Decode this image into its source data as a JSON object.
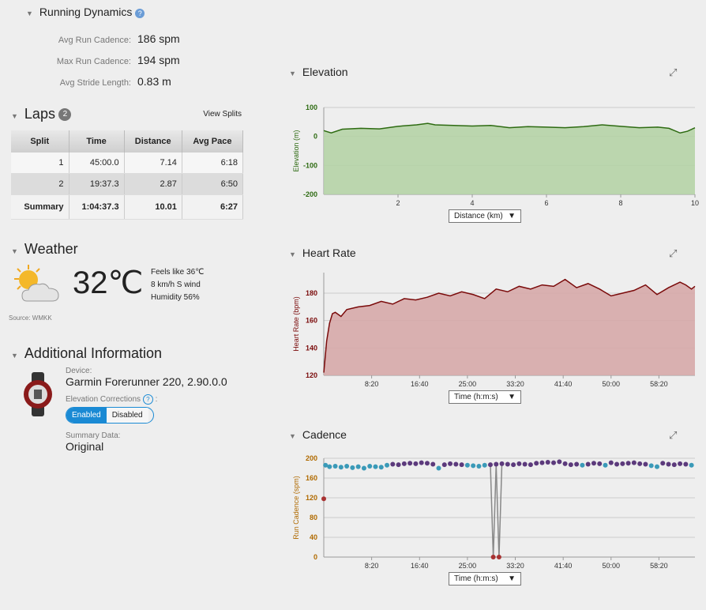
{
  "running_dynamics": {
    "title": "Running Dynamics",
    "rows": [
      {
        "label": "Avg Run Cadence:",
        "value": "186 spm"
      },
      {
        "label": "Max Run Cadence:",
        "value": "194 spm"
      },
      {
        "label": "Avg Stride Length:",
        "value": "0.83 m"
      }
    ]
  },
  "laps": {
    "title": "Laps",
    "count": "2",
    "view_splits": "View Splits",
    "headers": [
      "Split",
      "Time",
      "Distance",
      "Avg Pace"
    ],
    "rows": [
      [
        "1",
        "45:00.0",
        "7.14",
        "6:18"
      ],
      [
        "2",
        "19:37.3",
        "2.87",
        "6:50"
      ]
    ],
    "summary": [
      "Summary",
      "1:04:37.3",
      "10.01",
      "6:27"
    ]
  },
  "weather": {
    "title": "Weather",
    "temp": "32℃",
    "feels": "Feels like 36℃",
    "wind": "8 km/h S wind",
    "humidity": "Humidity 56%",
    "source": "Source: WMKK",
    "icon": "partly-cloudy-icon"
  },
  "additional": {
    "title": "Additional Information",
    "device_label": "Device:",
    "device": "Garmin Forerunner 220, 2.90.0.0",
    "elev_label": "Elevation Corrections",
    "enabled": "Enabled",
    "disabled": "Disabled",
    "summary_label": "Summary Data:",
    "summary": "Original"
  },
  "colors": {
    "elevation": "#2e6b12",
    "elevation_fill": "#b5d3a6",
    "hr": "#7a0a0a",
    "hr_fill": "#d6a8a8",
    "cad_axis": "#b06a00",
    "cad_high": "#5c3a7c",
    "cad_mid": "#3a9ab8",
    "cad_low": "#a83232",
    "toggle": "#1a8ad4"
  },
  "chart_data": [
    {
      "type": "area",
      "title": "Elevation",
      "ylabel": "Elevation (m)",
      "xaxis_select": "Distance (km)",
      "xlim": [
        0,
        10
      ],
      "ylim": [
        -200,
        100
      ],
      "xticks": [
        "2",
        "4",
        "6",
        "8",
        "10"
      ],
      "yticks": [
        "100",
        "0",
        "-100",
        "-200"
      ],
      "grid": true,
      "x": [
        0,
        0.2,
        0.5,
        1,
        1.5,
        2,
        2.5,
        2.8,
        3,
        3.5,
        4,
        4.5,
        5,
        5.5,
        6,
        6.5,
        7,
        7.5,
        8,
        8.5,
        9,
        9.3,
        9.6,
        9.8,
        10
      ],
      "y": [
        20,
        12,
        25,
        28,
        26,
        35,
        40,
        45,
        40,
        38,
        36,
        38,
        30,
        34,
        32,
        30,
        34,
        40,
        35,
        30,
        32,
        28,
        12,
        18,
        30
      ]
    },
    {
      "type": "area",
      "title": "Heart Rate",
      "ylabel": "Heart Rate (bpm)",
      "xaxis_select": "Time (h:m:s)",
      "xlim": [
        0,
        64.6
      ],
      "ylim": [
        120,
        195
      ],
      "xticks": [
        "8:20",
        "16:40",
        "25:00",
        "33:20",
        "41:40",
        "50:00",
        "58:20"
      ],
      "xtick_values": [
        8.33,
        16.67,
        25,
        33.33,
        41.67,
        50,
        58.33
      ],
      "yticks": [
        "180",
        "160",
        "140",
        "120"
      ],
      "grid": true,
      "x": [
        0,
        0.5,
        1,
        1.5,
        2,
        3,
        4,
        6,
        8,
        10,
        12,
        14,
        16,
        18,
        20,
        22,
        24,
        26,
        28,
        30,
        32,
        34,
        36,
        38,
        40,
        42,
        44,
        46,
        48,
        50,
        52,
        54,
        56,
        58,
        60,
        62,
        63,
        64,
        64.6
      ],
      "y": [
        122,
        145,
        158,
        165,
        166,
        163,
        168,
        170,
        171,
        174,
        172,
        176,
        175,
        177,
        180,
        178,
        181,
        179,
        176,
        183,
        181,
        185,
        183,
        186,
        185,
        190,
        184,
        187,
        183,
        178,
        180,
        182,
        186,
        179,
        184,
        188,
        186,
        183,
        185
      ]
    },
    {
      "type": "scatter",
      "title": "Cadence",
      "ylabel": "Run Cadence (spm)",
      "xaxis_select": "Time (h:m:s)",
      "xlim": [
        0,
        64.6
      ],
      "ylim": [
        0,
        200
      ],
      "xticks": [
        "8:20",
        "16:40",
        "25:00",
        "33:20",
        "41:40",
        "50:00",
        "58:20"
      ],
      "xtick_values": [
        8.33,
        16.67,
        25,
        33.33,
        41.67,
        50,
        58.33
      ],
      "yticks": [
        "200",
        "160",
        "120",
        "80",
        "40",
        "0"
      ],
      "grid": true,
      "x": [
        0,
        0.3,
        1,
        2,
        3,
        4,
        5,
        6,
        7,
        8,
        9,
        10,
        11,
        12,
        13,
        14,
        15,
        16,
        17,
        18,
        19,
        20,
        21,
        22,
        23,
        24,
        25,
        26,
        27,
        28,
        29,
        29.5,
        30,
        30.5,
        31,
        32,
        33,
        34,
        35,
        36,
        37,
        38,
        39,
        40,
        41,
        42,
        43,
        44,
        45,
        46,
        47,
        48,
        49,
        50,
        51,
        52,
        53,
        54,
        55,
        56,
        57,
        58,
        59,
        60,
        61,
        62,
        63,
        64
      ],
      "y": [
        118,
        186,
        183,
        184,
        182,
        184,
        181,
        183,
        180,
        184,
        183,
        182,
        186,
        188,
        187,
        189,
        190,
        189,
        191,
        190,
        188,
        180,
        187,
        189,
        188,
        187,
        186,
        185,
        184,
        186,
        187,
        0,
        188,
        0,
        189,
        188,
        187,
        189,
        188,
        187,
        190,
        191,
        192,
        191,
        193,
        189,
        187,
        188,
        186,
        188,
        190,
        189,
        186,
        191,
        188,
        189,
        190,
        191,
        189,
        188,
        185,
        183,
        190,
        188,
        187,
        189,
        188,
        186
      ]
    }
  ]
}
